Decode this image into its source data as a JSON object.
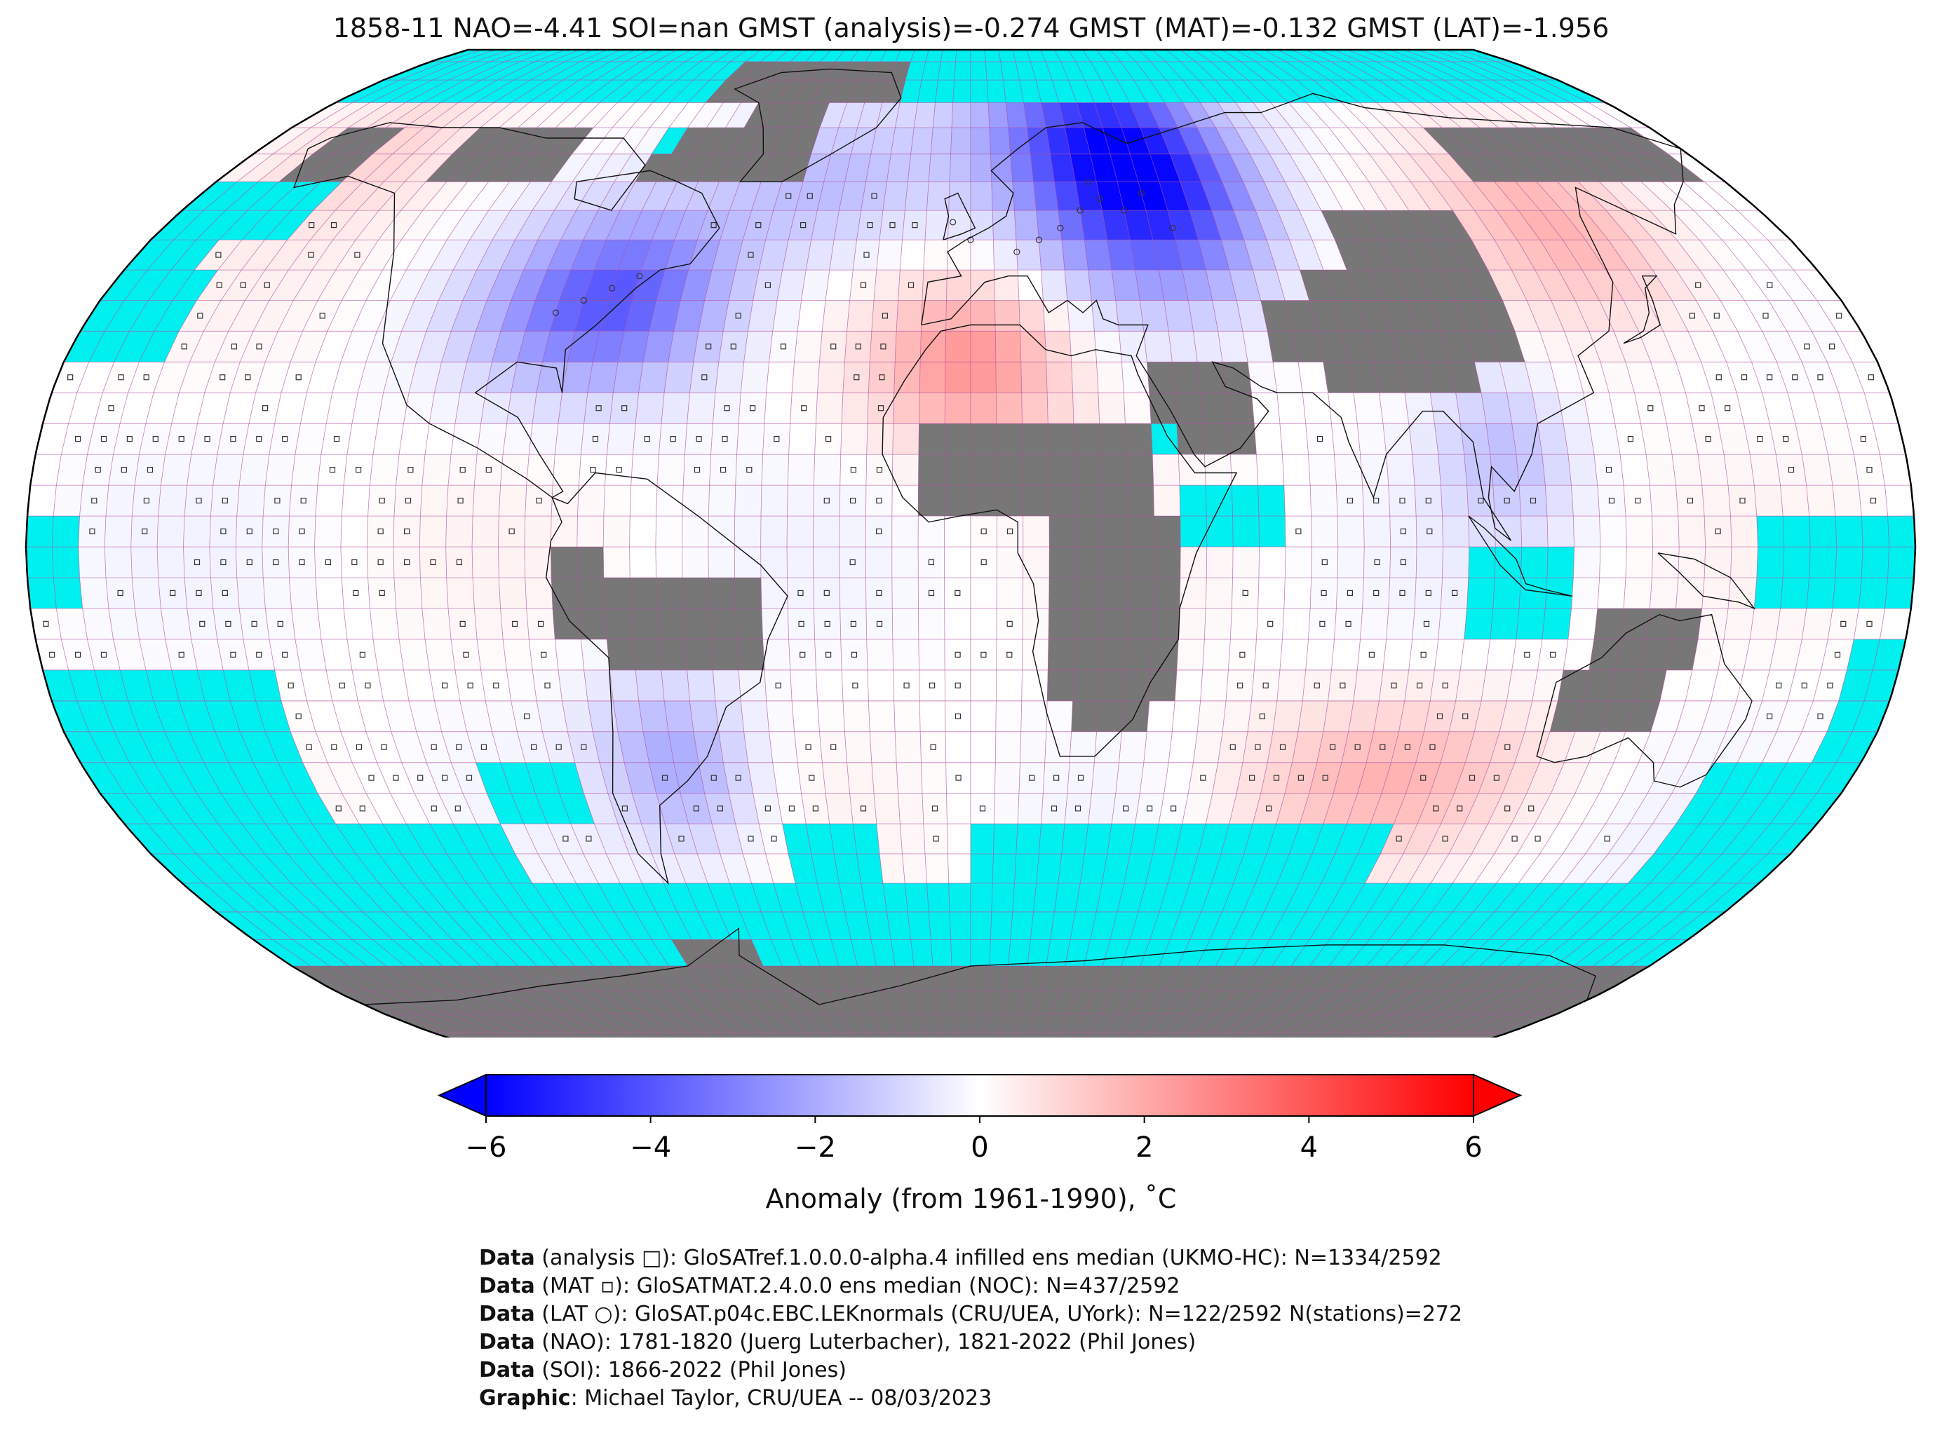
{
  "title": "1858-11 NAO=-4.41 SOI=nan GMST (analysis)=-0.274 GMST (MAT)=-0.132 GMST (LAT)=-1.956",
  "colors": {
    "ocean_missing": "#00f0f0",
    "land_missing": "#777777",
    "gridline": "#b04aa0",
    "coast": "#111111",
    "cold_max": "#0000ff",
    "warm_max": "#ff0000",
    "neutral": "#ffffff"
  },
  "colorbar": {
    "min": -6,
    "max": 6,
    "ticks": [
      "−6",
      "−4",
      "−2",
      "0",
      "2",
      "4",
      "6"
    ],
    "label": "Anomaly (from 1961-1990), ˚C",
    "extend": "both"
  },
  "notes": [
    {
      "bold": "Data",
      "text": " (analysis □): GloSATref.1.0.0.0-alpha.4 infilled ens median (UKMO-HC): N=1334/2592"
    },
    {
      "bold": "Data",
      "text": " (MAT ▫): GloSATMAT.2.4.0.0 ens median (NOC): N=437/2592"
    },
    {
      "bold": "Data",
      "text": " (LAT ○): GloSAT.p04c.EBC.LEKnormals (CRU/UEA, UYork): N=122/2592 N(stations)=272"
    },
    {
      "bold": "Data",
      "text": " (NAO): 1781-1820 (Juerg Luterbacher), 1821-2022 (Phil Jones)"
    },
    {
      "bold": "Data",
      "text": " (SOI): 1866-2022 (Phil Jones)"
    },
    {
      "bold": "Graphic",
      "text": ": Michael Taylor, CRU/UEA -- 08/03/2023"
    }
  ],
  "map": {
    "projection": "Robinson",
    "grid_resolution_deg": 5,
    "anomaly_regions": [
      {
        "name": "Eastern Europe / Western Russia",
        "lon": [
          20,
          60
        ],
        "lat": [
          45,
          70
        ],
        "anomaly": -5.0
      },
      {
        "name": "Eastern North America",
        "lon": [
          -95,
          -55
        ],
        "lat": [
          30,
          50
        ],
        "anomaly": -4.0
      },
      {
        "name": "Scandinavia / Barents",
        "lon": [
          0,
          60
        ],
        "lat": [
          60,
          80
        ],
        "anomaly": -3.0
      },
      {
        "name": "Northern North Atlantic",
        "lon": [
          -60,
          -10
        ],
        "lat": [
          50,
          70
        ],
        "anomaly": -1.5
      },
      {
        "name": "Alaska / Bering",
        "lon": [
          -170,
          -130
        ],
        "lat": [
          55,
          75
        ],
        "anomaly": 1.0
      },
      {
        "name": "NE Asia",
        "lon": [
          110,
          150
        ],
        "lat": [
          40,
          65
        ],
        "anomaly": 1.8
      },
      {
        "name": "North Africa / Med",
        "lon": [
          -15,
          15
        ],
        "lat": [
          20,
          40
        ],
        "anomaly": 2.5
      },
      {
        "name": "South America south",
        "lon": [
          -70,
          -50
        ],
        "lat": [
          -45,
          -25
        ],
        "anomaly": -2.0
      },
      {
        "name": "South Indian Ocean",
        "lon": [
          60,
          110
        ],
        "lat": [
          -45,
          -30
        ],
        "anomaly": 1.8
      },
      {
        "name": "Southeast Asia",
        "lon": [
          95,
          110
        ],
        "lat": [
          5,
          25
        ],
        "anomaly": -1.5
      }
    ]
  }
}
